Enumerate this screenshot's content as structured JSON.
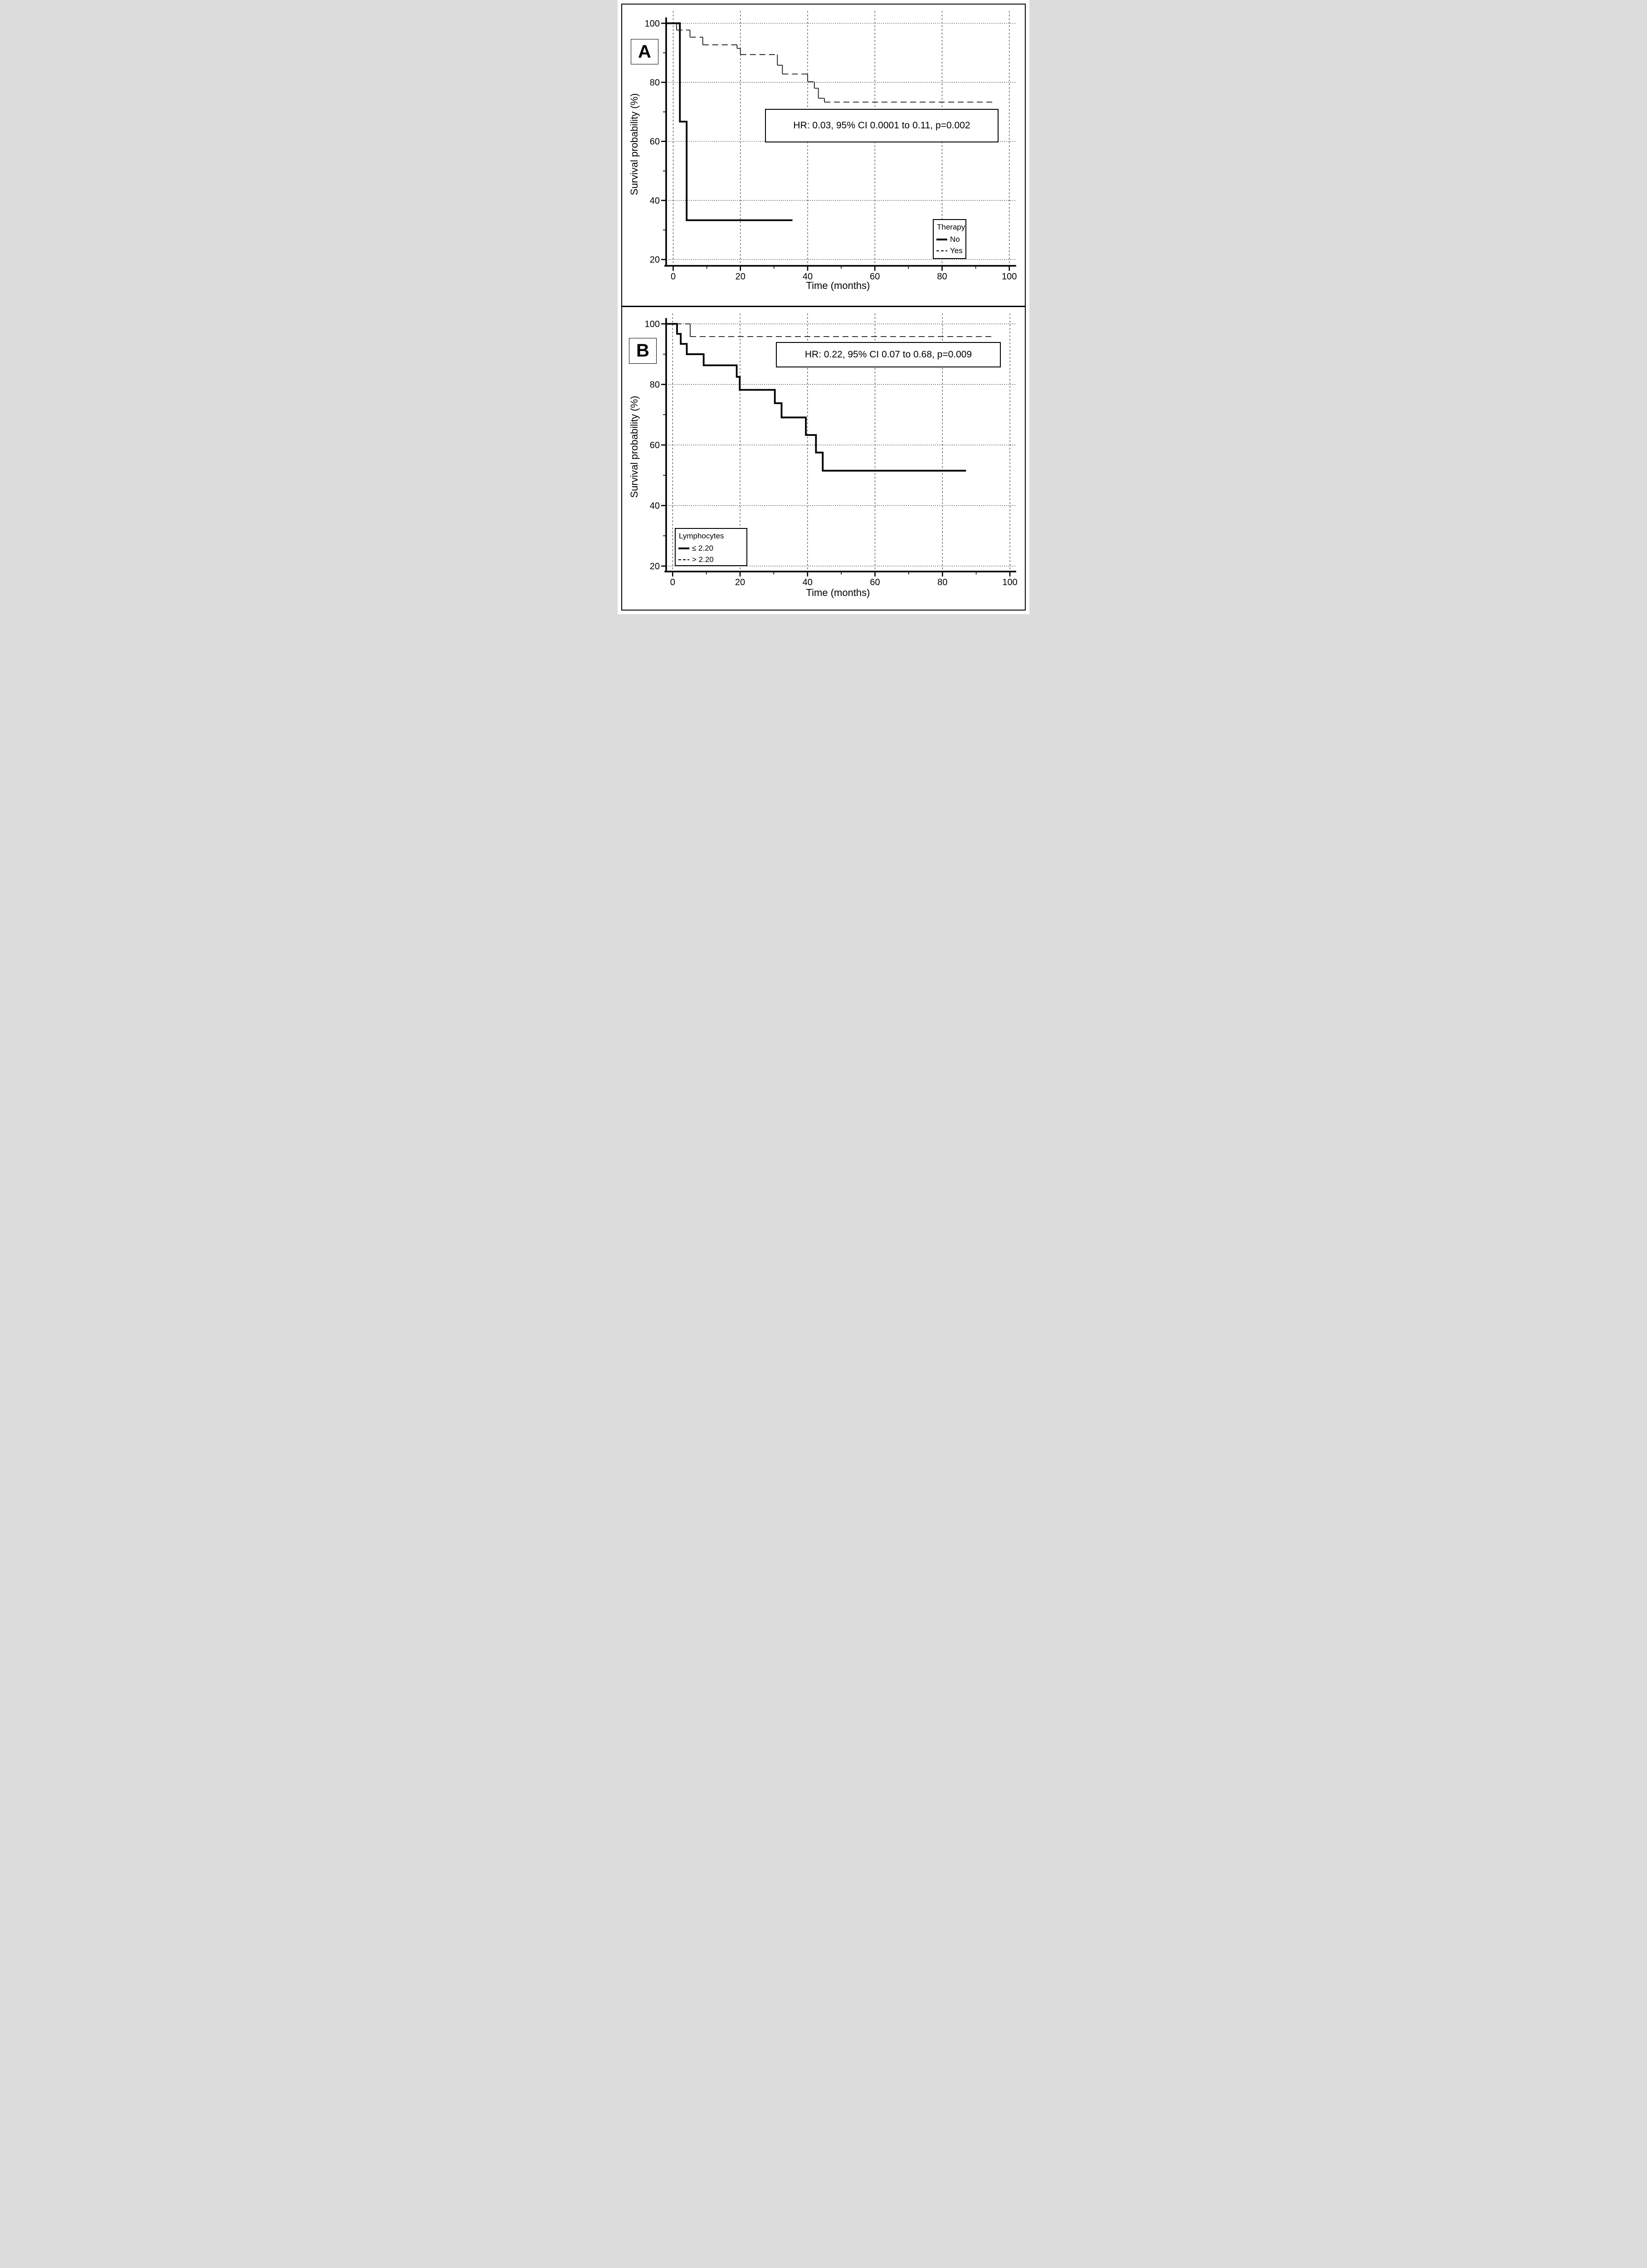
{
  "figure": {
    "panels": [
      {
        "label": "A",
        "annotation": "HR: 0.03, 95% CI 0.0001 to 0.11, p=0.002",
        "x_title": "Time (months)",
        "y_title": "Survival probability (%)",
        "legend": {
          "title": "Therapy",
          "items": [
            {
              "label": "No",
              "style": "solid-thick"
            },
            {
              "label": "Yes",
              "style": "dashed-thin"
            }
          ]
        }
      },
      {
        "label": "B",
        "annotation": "HR: 0.22, 95% CI 0.07 to 0.68, p=0.009",
        "x_title": "Time (months)",
        "y_title": "Survival probability (%)",
        "legend": {
          "title": "Lymphocytes",
          "items": [
            {
              "label": "≤ 2.20",
              "style": "solid-thick"
            },
            {
              "label": "> 2.20",
              "style": "dashed-thin"
            }
          ]
        }
      }
    ]
  },
  "chart_data": [
    {
      "type": "line",
      "variant": "kaplan-meier-step",
      "panel": "A",
      "title": "",
      "xlabel": "Time (months)",
      "ylabel": "Survival probability (%)",
      "xlim": [
        0,
        100
      ],
      "ylim": [
        20,
        100
      ],
      "x_major_ticks": [
        0,
        20,
        40,
        60,
        80,
        100
      ],
      "x_minor_ticks": [
        10,
        30,
        50,
        70,
        90
      ],
      "y_major_ticks": [
        100,
        80,
        60,
        40,
        20
      ],
      "y_minor_ticks": [
        90,
        70,
        50,
        30
      ],
      "grid": {
        "vertical_at": [
          0,
          20,
          40,
          60,
          80,
          100
        ],
        "horizontal_at": [
          100,
          80,
          60,
          40,
          20
        ]
      },
      "annotation": "HR: 0.03, 95% CI 0.0001 to 0.11, p=0.002",
      "legend_position": "bottom-right",
      "series": [
        {
          "name": "No",
          "line": "solid-thick",
          "levels": [
            {
              "survival_pct": 100,
              "until_month": 2
            },
            {
              "survival_pct": 66.7,
              "until_month": 4
            },
            {
              "survival_pct": 33.3,
              "until_month": 35.5
            }
          ]
        },
        {
          "name": "Yes",
          "line": "dashed-thin",
          "levels": [
            {
              "survival_pct": 100,
              "until_month": 1
            },
            {
              "survival_pct": 97.7,
              "until_month": 5
            },
            {
              "survival_pct": 95.3,
              "until_month": 8.8
            },
            {
              "survival_pct": 92.7,
              "until_month": 19
            },
            {
              "survival_pct": 91.5,
              "until_month": 20
            },
            {
              "survival_pct": 89.4,
              "until_month": 31
            },
            {
              "survival_pct": 85.8,
              "until_month": 32.5
            },
            {
              "survival_pct": 82.8,
              "until_month": 40
            },
            {
              "survival_pct": 80.2,
              "until_month": 42
            },
            {
              "survival_pct": 78.0,
              "until_month": 43.2
            },
            {
              "survival_pct": 74.6,
              "until_month": 45
            },
            {
              "survival_pct": 73.3,
              "until_month": 95.5
            }
          ]
        }
      ]
    },
    {
      "type": "line",
      "variant": "kaplan-meier-step",
      "panel": "B",
      "title": "",
      "xlabel": "Time (months)",
      "ylabel": "Survival probability (%)",
      "xlim": [
        0,
        100
      ],
      "ylim": [
        20,
        100
      ],
      "x_major_ticks": [
        0,
        20,
        40,
        60,
        80,
        100
      ],
      "x_minor_ticks": [
        10,
        30,
        50,
        70,
        90
      ],
      "y_major_ticks": [
        100,
        80,
        60,
        40,
        20
      ],
      "y_minor_ticks": [
        90,
        70,
        50,
        30
      ],
      "grid": {
        "vertical_at": [
          0,
          20,
          40,
          60,
          80,
          100
        ],
        "horizontal_at": [
          100,
          80,
          60,
          40,
          20
        ]
      },
      "annotation": "HR: 0.22, 95% CI 0.07 to 0.68, p=0.009",
      "legend_position": "bottom-left",
      "series": [
        {
          "name": "≤ 2.20",
          "line": "solid-thick",
          "levels": [
            {
              "survival_pct": 100,
              "until_month": 1.3
            },
            {
              "survival_pct": 96.7,
              "until_month": 2.4
            },
            {
              "survival_pct": 93.4,
              "until_month": 4.2
            },
            {
              "survival_pct": 90.0,
              "until_month": 9.2
            },
            {
              "survival_pct": 86.3,
              "until_month": 19
            },
            {
              "survival_pct": 82.5,
              "until_month": 19.9
            },
            {
              "survival_pct": 78.2,
              "until_month": 30.3
            },
            {
              "survival_pct": 73.8,
              "until_month": 32.3
            },
            {
              "survival_pct": 69.1,
              "until_month": 39.5
            },
            {
              "survival_pct": 63.3,
              "until_month": 42.5
            },
            {
              "survival_pct": 57.5,
              "until_month": 44.5
            },
            {
              "survival_pct": 51.5,
              "until_month": 87
            }
          ]
        },
        {
          "name": "> 2.20",
          "line": "dashed-thin",
          "levels": [
            {
              "survival_pct": 100,
              "until_month": 5.2
            },
            {
              "survival_pct": 95.8,
              "until_month": 95.5
            }
          ]
        }
      ]
    }
  ]
}
